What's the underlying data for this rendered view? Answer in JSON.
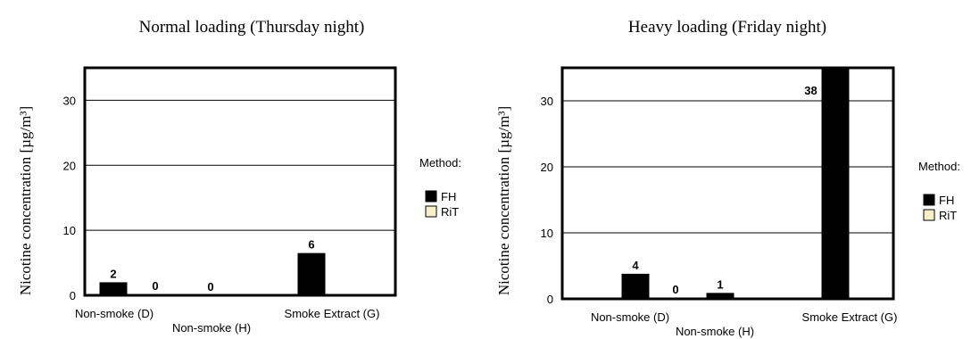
{
  "colors": {
    "fh": "#000000",
    "rit": "#f5f0c8",
    "frame": "#000000",
    "grid": "#000000"
  },
  "chart_data": [
    {
      "type": "bar",
      "title": "Normal loading (Thursday night)",
      "ylabel": "Nicotine concentration [µg/m³]",
      "xlabel": "",
      "categories": [
        "Non-smoke (D)",
        "Non-smoke (H)",
        "Smoke Extract (G)"
      ],
      "series": [
        {
          "name": "FH",
          "values": [
            2,
            0,
            6.5
          ],
          "labels": [
            "2",
            "0",
            "6"
          ]
        },
        {
          "name": "RiT",
          "values": [
            0,
            null,
            null
          ],
          "labels": [
            "0",
            "",
            ""
          ]
        }
      ],
      "ylim": [
        0,
        35
      ],
      "yticks": [
        0,
        10,
        20,
        30
      ],
      "grid": true,
      "legend": {
        "title": "Method:",
        "placement": "right"
      }
    },
    {
      "type": "bar",
      "title": "Heavy loading (Friday night)",
      "ylabel": "Nicotine concentration [µg/m³]",
      "xlabel": "",
      "categories": [
        "Non-smoke (D)",
        "Non-smoke (H)",
        "Smoke Extract (G)"
      ],
      "series": [
        {
          "name": "FH",
          "values": [
            3.8,
            0.9,
            38
          ],
          "labels": [
            "4",
            "1",
            "38"
          ]
        },
        {
          "name": "RiT",
          "values": [
            0,
            null,
            null
          ],
          "labels": [
            "0",
            "",
            ""
          ]
        }
      ],
      "ylim": [
        0,
        35
      ],
      "yticks": [
        0,
        10,
        20,
        30
      ],
      "grid": true,
      "legend": {
        "title": "Method:",
        "placement": "right"
      }
    }
  ]
}
